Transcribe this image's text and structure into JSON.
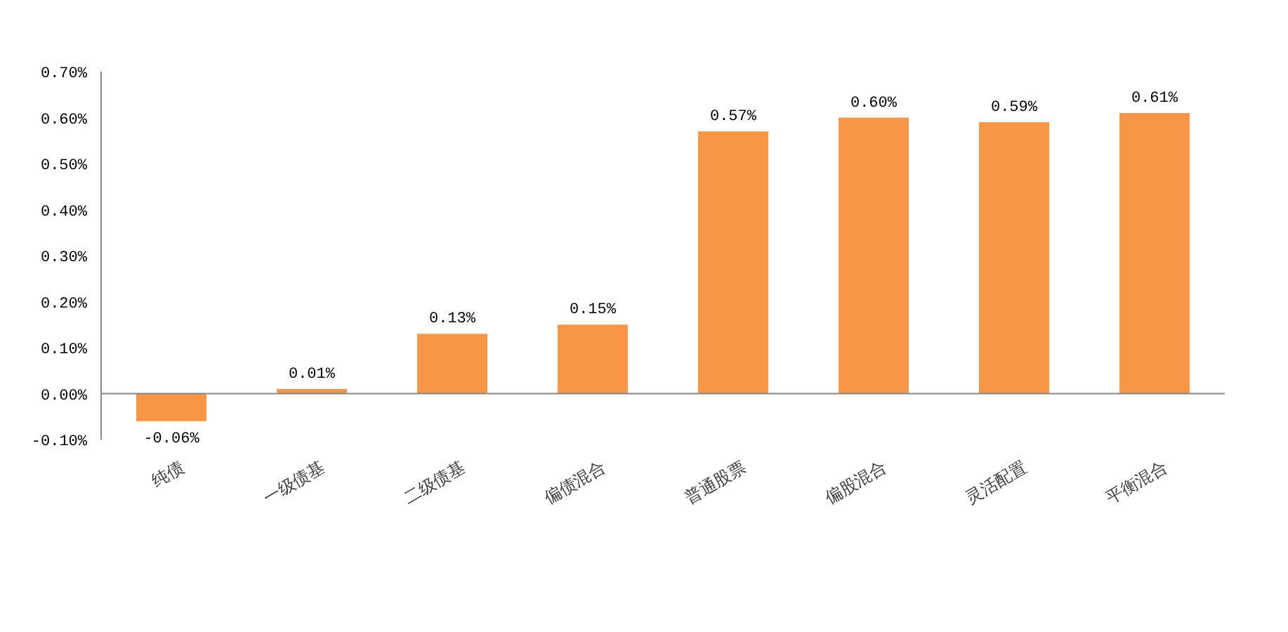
{
  "chart_data": {
    "type": "bar",
    "categories": [
      "纯债",
      "一级债基",
      "二级债基",
      "偏债混合",
      "普通股票",
      "偏股混合",
      "灵活配置",
      "平衡混合"
    ],
    "values": [
      -0.06,
      0.01,
      0.13,
      0.15,
      0.57,
      0.6,
      0.59,
      0.61
    ],
    "value_labels": [
      "-0.06%",
      "0.01%",
      "0.13%",
      "0.15%",
      "0.57%",
      "0.60%",
      "0.59%",
      "0.61%"
    ],
    "color": "#f79646",
    "ylim": [
      -0.1,
      0.7
    ],
    "yticks": [
      {
        "value": -0.1,
        "label": "-0.10%"
      },
      {
        "value": 0,
        "label": "0.00%"
      },
      {
        "value": 0.1,
        "label": "0.10%"
      },
      {
        "value": 0.2,
        "label": "0.20%"
      },
      {
        "value": 0.3,
        "label": "0.30%"
      },
      {
        "value": 0.4,
        "label": "0.40%"
      },
      {
        "value": 0.5,
        "label": "0.50%"
      },
      {
        "value": 0.6,
        "label": "0.60%"
      },
      {
        "value": 0.7,
        "label": "0.70%"
      }
    ]
  }
}
